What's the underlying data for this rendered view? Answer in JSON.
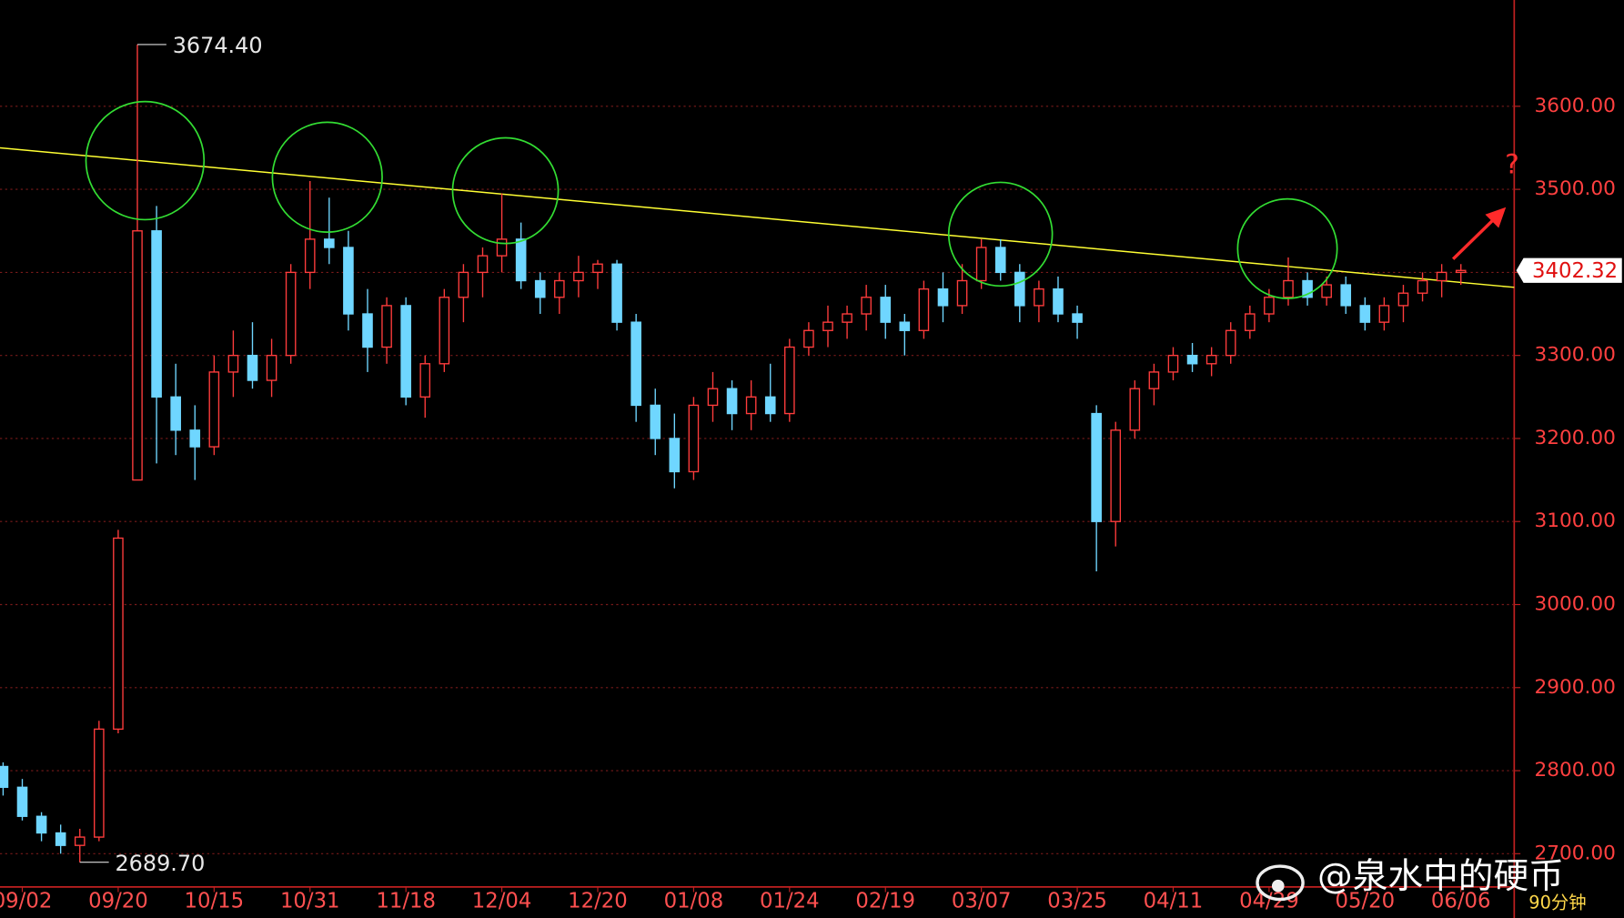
{
  "chart_data": {
    "type": "candlestick",
    "categories": [
      null,
      "09/02",
      null,
      null,
      null,
      null,
      "09/20",
      null,
      null,
      null,
      null,
      "10/15",
      null,
      null,
      null,
      null,
      "10/31",
      null,
      null,
      null,
      null,
      "11/18",
      null,
      null,
      null,
      null,
      "12/04",
      null,
      null,
      null,
      null,
      "12/20",
      null,
      null,
      null,
      null,
      "01/08",
      null,
      null,
      null,
      null,
      "01/24",
      null,
      null,
      null,
      null,
      "02/19",
      null,
      null,
      null,
      null,
      "03/07",
      null,
      null,
      null,
      null,
      "03/25",
      null,
      null,
      null,
      null,
      "04/11",
      null,
      null,
      null,
      null,
      "04/29",
      null,
      null,
      null,
      null,
      "05/20",
      null,
      null,
      null,
      null,
      "06/06"
    ],
    "open": [
      2805,
      2780,
      2745,
      2725,
      2710,
      2720,
      2850,
      3150,
      3450,
      3250,
      3210,
      3190,
      3280,
      3300,
      3270,
      3300,
      3400,
      3440,
      3430,
      3350,
      3310,
      3360,
      3250,
      3290,
      3370,
      3400,
      3420,
      3440,
      3390,
      3370,
      3390,
      3400,
      3410,
      3340,
      3240,
      3200,
      3160,
      3240,
      3260,
      3230,
      3250,
      3230,
      3310,
      3330,
      3340,
      3350,
      3370,
      3340,
      3330,
      3380,
      3360,
      3390,
      3430,
      3400,
      3360,
      3380,
      3350,
      3230,
      3100,
      3210,
      3260,
      3280,
      3300,
      3290,
      3300,
      3330,
      3350,
      3370,
      3390,
      3370,
      3385,
      3360,
      3340,
      3360,
      3375,
      3390,
      3400
    ],
    "high": [
      2810,
      2790,
      2750,
      2735,
      2730,
      2860,
      3090,
      3674.4,
      3480,
      3290,
      3240,
      3300,
      3330,
      3340,
      3320,
      3410,
      3510,
      3490,
      3450,
      3380,
      3370,
      3370,
      3300,
      3380,
      3410,
      3430,
      3495,
      3460,
      3400,
      3400,
      3420,
      3415,
      3415,
      3350,
      3260,
      3230,
      3250,
      3280,
      3270,
      3270,
      3290,
      3320,
      3340,
      3360,
      3360,
      3385,
      3385,
      3350,
      3390,
      3400,
      3410,
      3440,
      3440,
      3410,
      3390,
      3395,
      3360,
      3240,
      3220,
      3270,
      3290,
      3310,
      3315,
      3310,
      3340,
      3360,
      3380,
      3418,
      3400,
      3395,
      3395,
      3370,
      3370,
      3385,
      3400,
      3410,
      3410
    ],
    "low": [
      2770,
      2740,
      2715,
      2700,
      2689.7,
      2715,
      2845,
      3150,
      3170,
      3180,
      3150,
      3180,
      3250,
      3260,
      3250,
      3290,
      3380,
      3410,
      3330,
      3280,
      3290,
      3240,
      3225,
      3280,
      3340,
      3370,
      3400,
      3380,
      3350,
      3350,
      3370,
      3380,
      3330,
      3220,
      3180,
      3140,
      3150,
      3220,
      3210,
      3210,
      3220,
      3220,
      3300,
      3310,
      3320,
      3330,
      3320,
      3300,
      3320,
      3340,
      3350,
      3380,
      3390,
      3340,
      3340,
      3340,
      3320,
      3040,
      3070,
      3200,
      3240,
      3270,
      3280,
      3275,
      3290,
      3320,
      3340,
      3360,
      3360,
      3360,
      3350,
      3330,
      3330,
      3340,
      3365,
      3370,
      3385
    ],
    "close": [
      2780,
      2745,
      2725,
      2710,
      2720,
      2850,
      3080,
      3450,
      3250,
      3210,
      3190,
      3280,
      3300,
      3270,
      3300,
      3400,
      3440,
      3430,
      3350,
      3310,
      3360,
      3250,
      3290,
      3370,
      3400,
      3420,
      3440,
      3390,
      3370,
      3390,
      3400,
      3410,
      3340,
      3240,
      3200,
      3160,
      3240,
      3260,
      3230,
      3250,
      3230,
      3310,
      3330,
      3340,
      3350,
      3370,
      3340,
      3330,
      3380,
      3360,
      3390,
      3430,
      3400,
      3360,
      3380,
      3350,
      3340,
      3100,
      3210,
      3260,
      3280,
      3300,
      3290,
      3300,
      3330,
      3350,
      3370,
      3390,
      3370,
      3385,
      3360,
      3340,
      3360,
      3375,
      3390,
      3400,
      3402.32
    ],
    "up_color": "#ff3c3c",
    "down_color": "#6fd6ff",
    "ylim": [
      2660,
      3728
    ],
    "yticks": [
      {
        "value": 2700,
        "label": "2700.00"
      },
      {
        "value": 2800,
        "label": "2800.00"
      },
      {
        "value": 2900,
        "label": "2900.00"
      },
      {
        "value": 3000,
        "label": "3000.00"
      },
      {
        "value": 3100,
        "label": "3100.00"
      },
      {
        "value": 3200,
        "label": "3200.00"
      },
      {
        "value": 3300,
        "label": "3300.00"
      },
      {
        "value": 3400,
        "label": "3400.00"
      },
      {
        "value": 3500,
        "label": "3500.00"
      },
      {
        "value": 3600,
        "label": "3600.00"
      }
    ],
    "grid": true,
    "annotations": [
      {
        "value": 3674.4,
        "label": "3674.40"
      },
      {
        "value": 2689.7,
        "label": "2689.70"
      }
    ],
    "trendline": {
      "color": "#ffff33",
      "values": [
        3550,
        3382
      ]
    },
    "question_mark": "?",
    "watermark": "@泉水中的硬币",
    "period": "90分钟"
  }
}
